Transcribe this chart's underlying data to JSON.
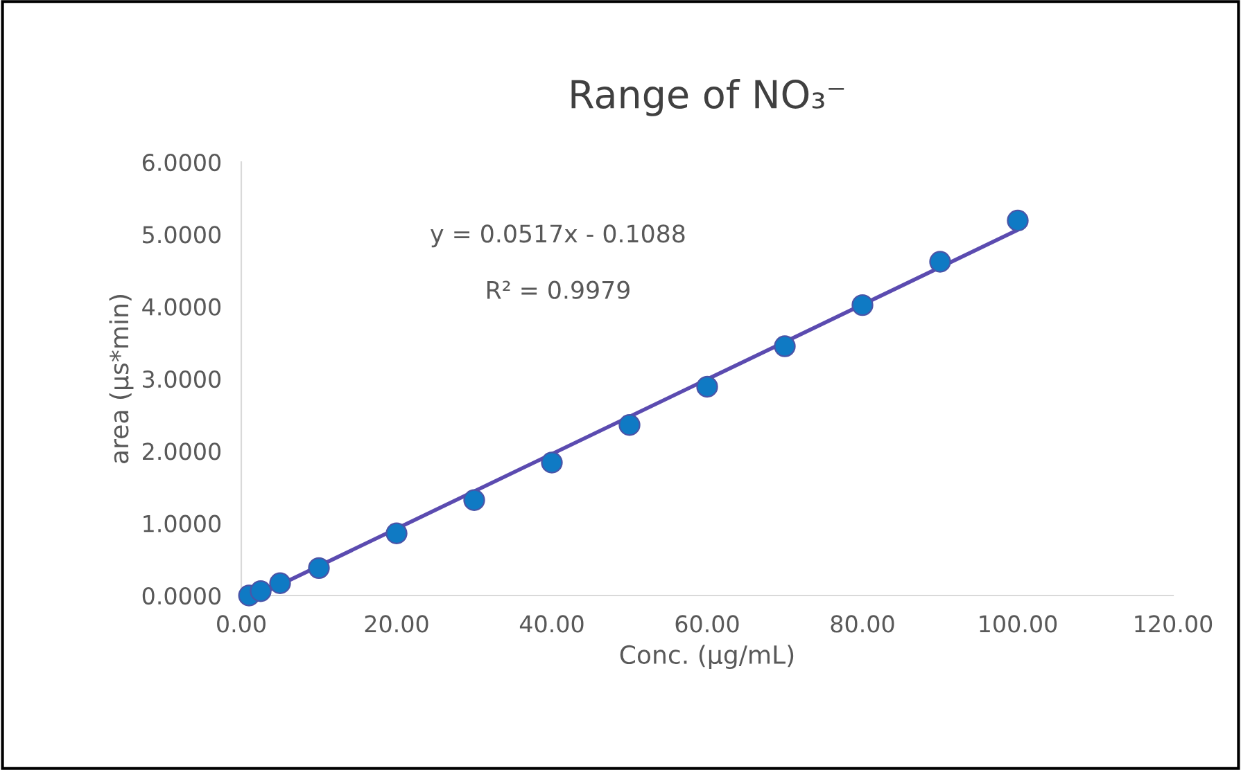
{
  "chart_data": {
    "type": "scatter",
    "title": "Range of NO₃⁻",
    "xlabel": "Conc. (µg/mL)",
    "ylabel": "area (µs*min)",
    "series": [
      {
        "color": "#0f7ac4",
        "marker": "circle",
        "x": [
          1,
          2.5,
          5,
          10,
          20,
          30,
          40,
          50,
          60,
          70,
          80,
          90,
          100
        ],
        "values": [
          0.0,
          0.06,
          0.17,
          0.38,
          0.86,
          1.32,
          1.84,
          2.36,
          2.89,
          3.45,
          4.02,
          4.62,
          5.19
        ]
      },
      {
        "type": "line",
        "color": "#5b4bb0",
        "x": [
          2.1,
          100
        ],
        "values": [
          0.0,
          5.06
        ]
      }
    ],
    "annotations": [
      "y = 0.0517x - 0.1088",
      "R² = 0.9979"
    ],
    "xlim": [
      0,
      120
    ],
    "ylim": [
      0,
      6
    ],
    "xticks": [
      {
        "value": 0,
        "label": "0.00"
      },
      {
        "value": 20,
        "label": "20.00"
      },
      {
        "value": 40,
        "label": "40.00"
      },
      {
        "value": 60,
        "label": "60.00"
      },
      {
        "value": 80,
        "label": "80.00"
      },
      {
        "value": 100,
        "label": "100.00"
      },
      {
        "value": 120,
        "label": "120.00"
      }
    ],
    "yticks": [
      {
        "value": 0,
        "label": "0.0000"
      },
      {
        "value": 1,
        "label": "1.0000"
      },
      {
        "value": 2,
        "label": "2.0000"
      },
      {
        "value": 3,
        "label": "3.0000"
      },
      {
        "value": 4,
        "label": "4.0000"
      },
      {
        "value": 5,
        "label": "5.0000"
      },
      {
        "value": 6,
        "label": "6.0000"
      }
    ],
    "grid": false,
    "legend": false
  }
}
